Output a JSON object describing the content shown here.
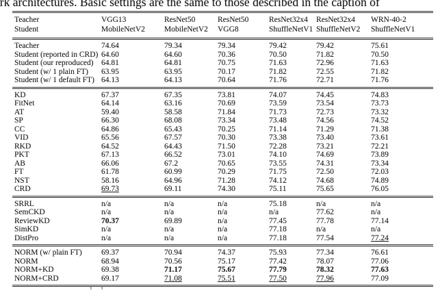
{
  "caption_fragment": "ork architectures. Basic settings are the same to those described in the caption of",
  "bottom_fragment": "1 1",
  "colors": {
    "text": "#1a1a1a",
    "rule": "#2b2b2b",
    "background": "#ffffff"
  },
  "table": {
    "header": {
      "teacher_label": "Teacher",
      "student_label": "Student",
      "columns": [
        {
          "teacher": "VGG13",
          "student": "MobileNetV2"
        },
        {
          "teacher": "ResNet50",
          "student": "MobileNetV2"
        },
        {
          "teacher": "ResNet50",
          "student": "VGG8"
        },
        {
          "teacher": "ResNet32x4",
          "student": "ShuffleNetV1"
        },
        {
          "teacher": "ResNet32x4",
          "student": "ShuffleNetV2"
        },
        {
          "teacher": "WRN-40-2",
          "student": "ShuffleNetV1"
        }
      ]
    },
    "sections": [
      {
        "name": "baselines",
        "rows": [
          {
            "label": "Teacher",
            "values": [
              "74.64",
              "79.34",
              "79.34",
              "79.42",
              "79.42",
              "75.61"
            ],
            "styles": [
              "",
              "",
              "",
              "",
              "",
              ""
            ]
          },
          {
            "label": "Student (reported in CRD)",
            "values": [
              "64.60",
              "64.60",
              "70.36",
              "70.50",
              "71.82",
              "70.50"
            ],
            "styles": [
              "",
              "",
              "",
              "",
              "",
              ""
            ]
          },
          {
            "label": "Student (our reproduced)",
            "values": [
              "64.81",
              "64.81",
              "70.75",
              "71.63",
              "72.96",
              "71.63"
            ],
            "styles": [
              "",
              "",
              "",
              "",
              "",
              ""
            ]
          },
          {
            "label": "Student (w/ 1 plain FT)",
            "values": [
              "63.95",
              "63.95",
              "70.17",
              "71.82",
              "72.55",
              "71.82"
            ],
            "styles": [
              "",
              "",
              "",
              "",
              "",
              ""
            ]
          },
          {
            "label": "Student (w/ 1 default FT)",
            "values": [
              "64.13",
              "64.13",
              "70.64",
              "71.76",
              "72.71",
              "71.76"
            ],
            "styles": [
              "",
              "",
              "",
              "",
              "",
              ""
            ]
          }
        ]
      },
      {
        "name": "classic-kd-methods",
        "rows": [
          {
            "label": "KD",
            "values": [
              "67.37",
              "67.35",
              "73.81",
              "74.07",
              "74.45",
              "74.83"
            ],
            "styles": [
              "",
              "",
              "",
              "",
              "",
              ""
            ]
          },
          {
            "label": "FitNet",
            "values": [
              "64.14",
              "63.16",
              "70.69",
              "73.59",
              "73.54",
              "73.73"
            ],
            "styles": [
              "",
              "",
              "",
              "",
              "",
              ""
            ]
          },
          {
            "label": "AT",
            "values": [
              "59.40",
              "58.58",
              "71.84",
              "71.73",
              "72.73",
              "73.32"
            ],
            "styles": [
              "",
              "",
              "",
              "",
              "",
              ""
            ]
          },
          {
            "label": "SP",
            "values": [
              "66.30",
              "68.08",
              "73.34",
              "73.48",
              "74.56",
              "74.52"
            ],
            "styles": [
              "",
              "",
              "",
              "",
              "",
              ""
            ]
          },
          {
            "label": "CC",
            "values": [
              "64.86",
              "65.43",
              "70.25",
              "71.14",
              "71.29",
              "71.38"
            ],
            "styles": [
              "",
              "",
              "",
              "",
              "",
              ""
            ]
          },
          {
            "label": "VID",
            "values": [
              "65.56",
              "67.57",
              "70.30",
              "73.38",
              "73.40",
              "73.61"
            ],
            "styles": [
              "",
              "",
              "",
              "",
              "",
              ""
            ]
          },
          {
            "label": "RKD",
            "values": [
              "64.52",
              "64.43",
              "71.50",
              "72.28",
              "73.21",
              "72.21"
            ],
            "styles": [
              "",
              "",
              "",
              "",
              "",
              ""
            ]
          },
          {
            "label": "PKT",
            "values": [
              "67.13",
              "66.52",
              "73.01",
              "74.10",
              "74.69",
              "73.89"
            ],
            "styles": [
              "",
              "",
              "",
              "",
              "",
              ""
            ]
          },
          {
            "label": "AB",
            "values": [
              "66.06",
              "67.2",
              "70.65",
              "73.55",
              "74.31",
              "73.34"
            ],
            "styles": [
              "",
              "",
              "",
              "",
              "",
              ""
            ]
          },
          {
            "label": "FT",
            "values": [
              "61.78",
              "60.99",
              "70.29",
              "71.75",
              "72.50",
              "72.03"
            ],
            "styles": [
              "",
              "",
              "",
              "",
              "",
              ""
            ]
          },
          {
            "label": "NST",
            "values": [
              "58.16",
              "64.96",
              "71.28",
              "74.12",
              "74.68",
              "74.89"
            ],
            "styles": [
              "",
              "",
              "",
              "",
              "",
              ""
            ]
          },
          {
            "label": "CRD",
            "values": [
              "69.73",
              "69.11",
              "74.30",
              "75.11",
              "75.65",
              "76.05"
            ],
            "styles": [
              "u",
              "",
              "",
              "",
              "",
              ""
            ]
          }
        ]
      },
      {
        "name": "recent-methods",
        "rows": [
          {
            "label": "SRRL",
            "values": [
              "n/a",
              "n/a",
              "n/a",
              "75.18",
              "n/a",
              "n/a"
            ],
            "styles": [
              "",
              "",
              "",
              "",
              "",
              ""
            ]
          },
          {
            "label": "SemCKD",
            "values": [
              "n/a",
              "n/a",
              "n/a",
              "n/a",
              "77.62",
              "n/a"
            ],
            "styles": [
              "",
              "",
              "",
              "",
              "",
              ""
            ]
          },
          {
            "label": "ReviewKD",
            "values": [
              "70.37",
              "69.89",
              "n/a",
              "77.45",
              "77.78",
              "77.14"
            ],
            "styles": [
              "b",
              "",
              "",
              "",
              "",
              ""
            ]
          },
          {
            "label": "SimKD",
            "values": [
              "n/a",
              "n/a",
              "n/a",
              "77.18",
              "n/a",
              "n/a"
            ],
            "styles": [
              "",
              "",
              "",
              "",
              "",
              ""
            ]
          },
          {
            "label": "DistPro",
            "values": [
              "n/a",
              "n/a",
              "n/a",
              "77.18",
              "77.54",
              "77.24"
            ],
            "styles": [
              "",
              "",
              "",
              "",
              "",
              "u"
            ]
          }
        ]
      },
      {
        "name": "norm-methods",
        "rows": [
          {
            "label": "NORM (w/ plain FT)",
            "values": [
              "69.37",
              "70.94",
              "74.37",
              "75.93",
              "77.34",
              "76.61"
            ],
            "styles": [
              "",
              "",
              "",
              "",
              "",
              ""
            ]
          },
          {
            "label": "NORM",
            "values": [
              "68.94",
              "70.56",
              "75.17",
              "77.42",
              "78.07",
              "77.06"
            ],
            "styles": [
              "",
              "",
              "",
              "",
              "",
              ""
            ]
          },
          {
            "label": "NORM+KD",
            "values": [
              "69.38",
              "71.17",
              "75.67",
              "77.79",
              "78.32",
              "77.63"
            ],
            "styles": [
              "",
              "b",
              "b",
              "b",
              "b",
              "b"
            ]
          },
          {
            "label": "NORM+CRD",
            "values": [
              "69.17",
              "71.08",
              "75.51",
              "77.50",
              "77.96",
              "77.09"
            ],
            "styles": [
              "",
              "u",
              "u",
              "u",
              "u",
              ""
            ]
          }
        ]
      }
    ]
  }
}
